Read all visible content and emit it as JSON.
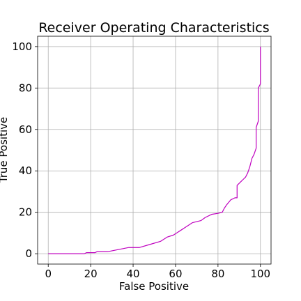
{
  "chart_data": {
    "type": "line",
    "title": "Receiver Operating Characteristics",
    "xlabel": "False Positive",
    "ylabel": "True Positive",
    "xlim": [
      -5,
      105
    ],
    "ylim": [
      -5,
      105
    ],
    "xticks": [
      "0",
      "20",
      "40",
      "60",
      "80",
      "100"
    ],
    "yticks": [
      "0",
      "20",
      "40",
      "60",
      "80",
      "100"
    ],
    "grid": true,
    "series": [
      {
        "color": "#bf00bf",
        "x": [
          0,
          17,
          18,
          22,
          23,
          28,
          33,
          38,
          43,
          48,
          53,
          56,
          59,
          62,
          65,
          68,
          72,
          74,
          77,
          80,
          82,
          83,
          84,
          86,
          88,
          89,
          89,
          91,
          92,
          93,
          94,
          95,
          96,
          97,
          98,
          98,
          99,
          99,
          99,
          100,
          100,
          100
        ],
        "y": [
          0,
          0,
          0.5,
          0.5,
          1,
          1,
          2,
          3,
          3,
          4.5,
          6,
          8,
          9,
          11,
          13,
          15,
          16,
          17.5,
          19,
          19.5,
          20,
          22,
          23.5,
          26,
          27,
          27,
          33,
          35,
          36,
          37,
          39,
          42,
          46,
          48,
          51,
          61,
          64,
          70,
          80,
          82,
          85,
          100
        ]
      }
    ]
  }
}
